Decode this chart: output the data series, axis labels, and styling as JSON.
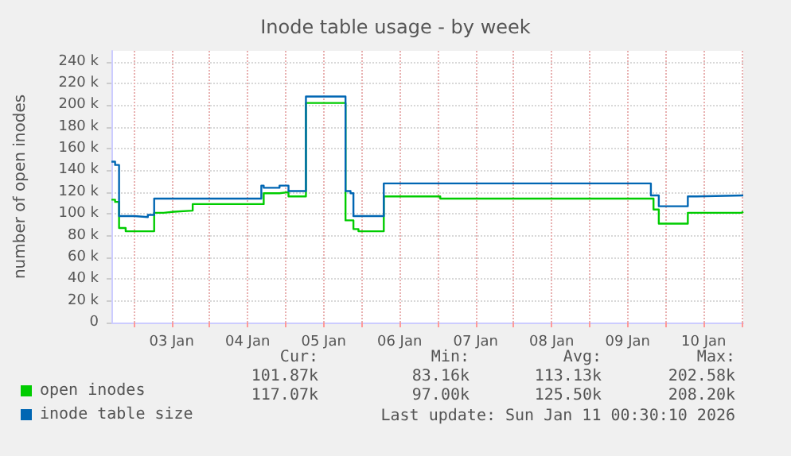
{
  "chart_data": {
    "type": "step",
    "title": "Inode table usage - by week",
    "ylabel": "number of open inodes",
    "xlim": [
      "2026-01-02T17:00",
      "2026-01-11T00:30"
    ],
    "xticks": [
      {
        "value": "2026-01-03T00:00",
        "label": null
      },
      {
        "value": "2026-01-03T12:00",
        "label": "03 Jan"
      },
      {
        "value": "2026-01-04T00:00",
        "label": null
      },
      {
        "value": "2026-01-04T12:00",
        "label": "04 Jan"
      },
      {
        "value": "2026-01-05T00:00",
        "label": null
      },
      {
        "value": "2026-01-05T12:00",
        "label": "05 Jan"
      },
      {
        "value": "2026-01-06T00:00",
        "label": null
      },
      {
        "value": "2026-01-06T12:00",
        "label": "06 Jan"
      },
      {
        "value": "2026-01-07T00:00",
        "label": null
      },
      {
        "value": "2026-01-07T12:00",
        "label": "07 Jan"
      },
      {
        "value": "2026-01-08T00:00",
        "label": null
      },
      {
        "value": "2026-01-08T12:00",
        "label": "08 Jan"
      },
      {
        "value": "2026-01-09T00:00",
        "label": null
      },
      {
        "value": "2026-01-09T12:00",
        "label": "09 Jan"
      },
      {
        "value": "2026-01-10T00:00",
        "label": null
      },
      {
        "value": "2026-01-10T12:00",
        "label": "10 Jan"
      },
      {
        "value": "2026-01-11T00:00",
        "label": null
      }
    ],
    "ylim": [
      0,
      250000
    ],
    "yticks": [
      0,
      {
        "value": 20000,
        "label": "20 k"
      },
      {
        "value": 40000,
        "label": "40 k"
      },
      {
        "value": 60000,
        "label": "60 k"
      },
      {
        "value": 80000,
        "label": "80 k"
      },
      {
        "value": 100000,
        "label": "100 k"
      },
      {
        "value": 120000,
        "label": "120 k"
      },
      {
        "value": 140000,
        "label": "140 k"
      },
      {
        "value": 160000,
        "label": "160 k"
      },
      {
        "value": 180000,
        "label": "180 k"
      },
      {
        "value": 200000,
        "label": "200 k"
      },
      {
        "value": 220000,
        "label": "220 k"
      },
      {
        "value": 240000,
        "label": "240 k"
      }
    ],
    "grid": true,
    "legend": "bottom left",
    "marker": "none",
    "line_style": "solid",
    "series": [
      {
        "name": "open inodes",
        "color": "#00cc00",
        "x": [
          "2026-01-02T17:00",
          "2026-01-02T18:10",
          "2026-01-02T19:25",
          "2026-01-02T21:30",
          "2026-01-03T06:30",
          "2026-01-03T09:30",
          "2026-01-03T12:50",
          "2026-01-03T18:40",
          "2026-01-04T17:05",
          "2026-01-04T22:05",
          "2026-01-05T00:55",
          "2026-01-05T06:25",
          "2026-01-05T18:55",
          "2026-01-05T21:25",
          "2026-01-05T23:00",
          "2026-01-06T07:00",
          "2026-01-07T00:50",
          "2026-01-09T20:10",
          "2026-01-09T21:50",
          "2026-01-10T07:00",
          "2026-01-11T00:00",
          "2026-01-11T00:30"
        ],
        "values": [
          113000,
          111000,
          87000,
          84000,
          101000,
          102000,
          103000,
          109000,
          119000,
          120000,
          116000,
          202000,
          94000,
          86000,
          84000,
          116000,
          114000,
          104000,
          91000,
          101000,
          102000,
          102000
        ]
      },
      {
        "name": "inode table size",
        "color": "#0066b3",
        "x": [
          "2026-01-02T17:00",
          "2026-01-02T18:10",
          "2026-01-02T19:25",
          "2026-01-03T00:20",
          "2026-01-03T04:30",
          "2026-01-03T06:30",
          "2026-01-04T16:20",
          "2026-01-04T17:05",
          "2026-01-04T22:05",
          "2026-01-05T00:55",
          "2026-01-05T06:25",
          "2026-01-05T18:55",
          "2026-01-05T20:30",
          "2026-01-05T21:25",
          "2026-01-06T07:00",
          "2026-01-09T19:20",
          "2026-01-09T21:50",
          "2026-01-10T07:00",
          "2026-01-10T09:50",
          "2026-01-11T00:30"
        ],
        "values": [
          148000,
          145000,
          98000,
          97000,
          99000,
          114000,
          126000,
          124000,
          126000,
          121000,
          208000,
          121000,
          119000,
          98000,
          128000,
          117000,
          107000,
          116000,
          117000,
          117000
        ]
      }
    ],
    "annotations": [
      "Cur:",
      "Min:",
      "Avg:",
      "Max:",
      "101.87k",
      "83.16k",
      "113.13k",
      "202.58k",
      "117.07k",
      "97.00k",
      "125.50k",
      "208.20k",
      "Last update: Sun Jan 11 00:30:10 2026"
    ]
  }
}
